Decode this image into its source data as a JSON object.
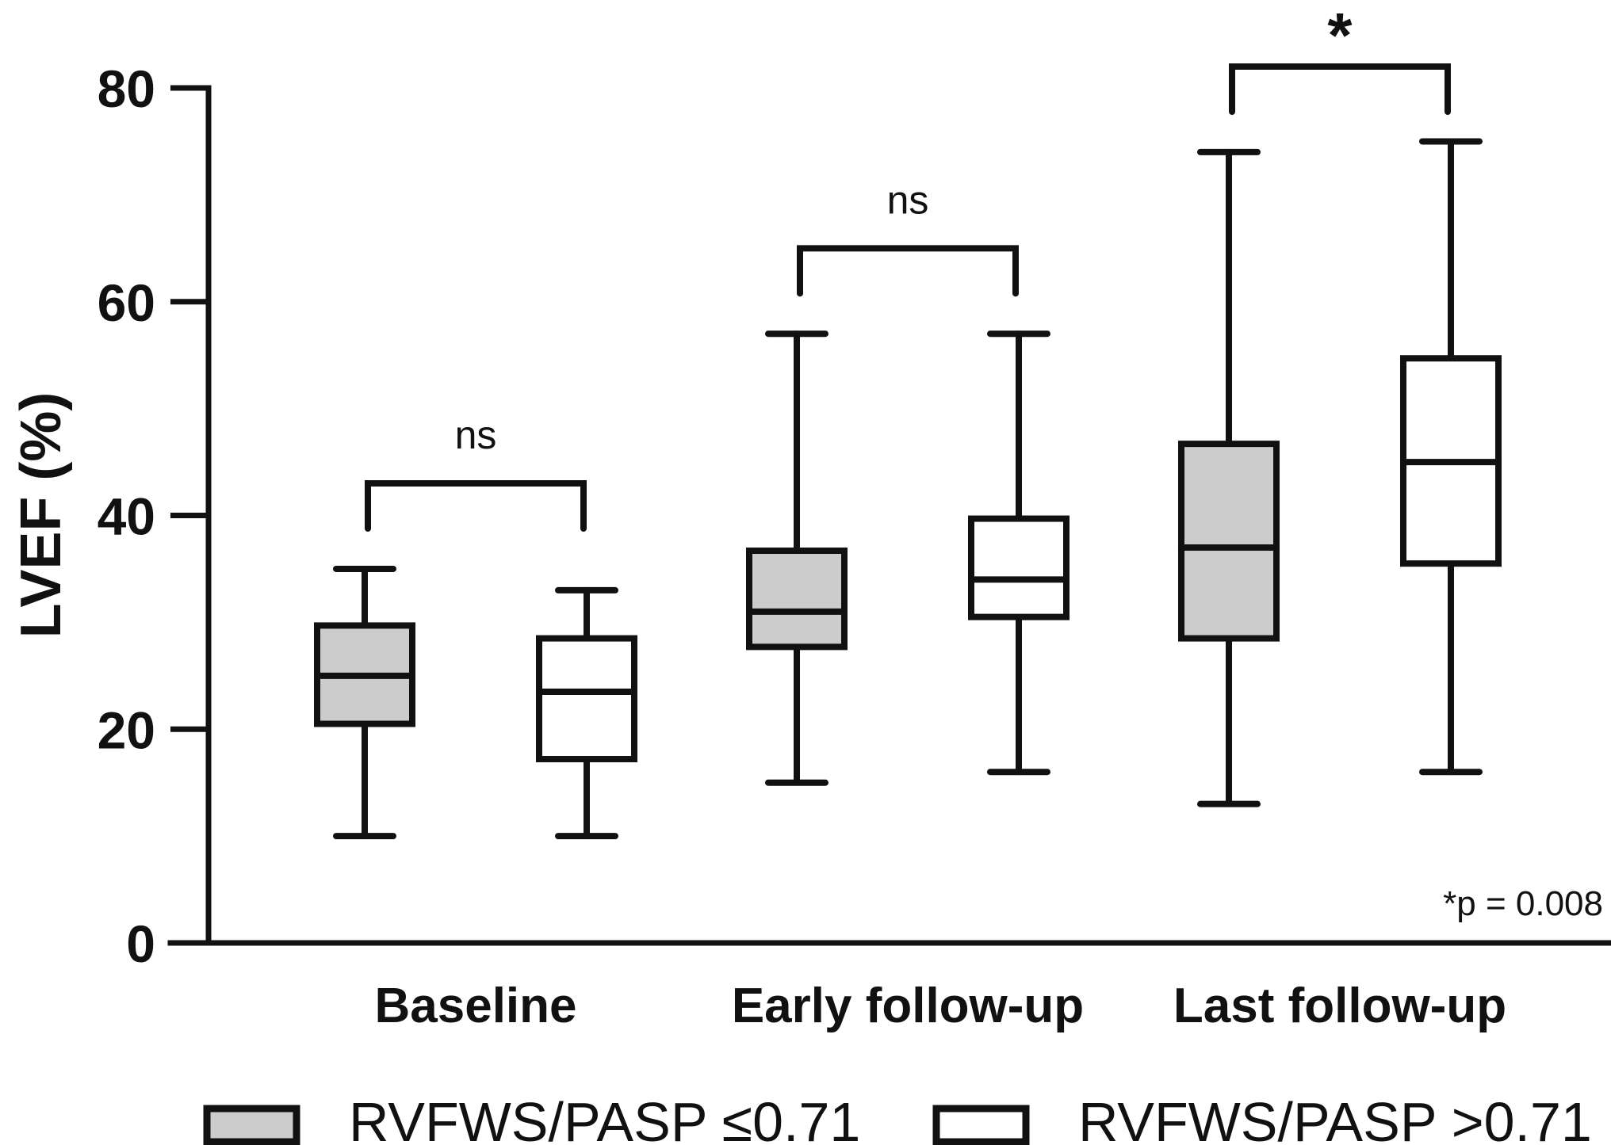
{
  "chart_data": {
    "type": "box",
    "ylabel": "LVEF (%)",
    "ylim": [
      0,
      80
    ],
    "yticks": [
      0,
      20,
      40,
      60,
      80
    ],
    "categories": [
      "Baseline",
      "Early follow-up",
      "Last follow-up"
    ],
    "series": [
      {
        "name": "RVFWS/PASP ≤0.71",
        "fill": "#cccccc",
        "boxes": [
          {
            "min": 10,
            "q1": 20.5,
            "median": 25,
            "q3": 29.7,
            "max": 35
          },
          {
            "min": 15,
            "q1": 27.7,
            "median": 31,
            "q3": 36.7,
            "max": 57
          },
          {
            "min": 13,
            "q1": 28.5,
            "median": 37,
            "q3": 46.7,
            "max": 74
          }
        ]
      },
      {
        "name": "RVFWS/PASP >0.71",
        "fill": "#ffffff",
        "boxes": [
          {
            "min": 10,
            "q1": 17.2,
            "median": 23.5,
            "q3": 28.5,
            "max": 33
          },
          {
            "min": 16,
            "q1": 30.5,
            "median": 34,
            "q3": 39.7,
            "max": 57
          },
          {
            "min": 16,
            "q1": 35.5,
            "median": 45,
            "q3": 54.7,
            "max": 75
          }
        ]
      }
    ],
    "comparisons": [
      {
        "category": "Baseline",
        "label": "ns",
        "level": 43
      },
      {
        "category": "Early follow-up",
        "label": "ns",
        "level": 65
      },
      {
        "category": "Last follow-up",
        "label": "*",
        "level": 82
      }
    ],
    "annotation": "*p = 0.008",
    "legend_position": "bottom"
  }
}
